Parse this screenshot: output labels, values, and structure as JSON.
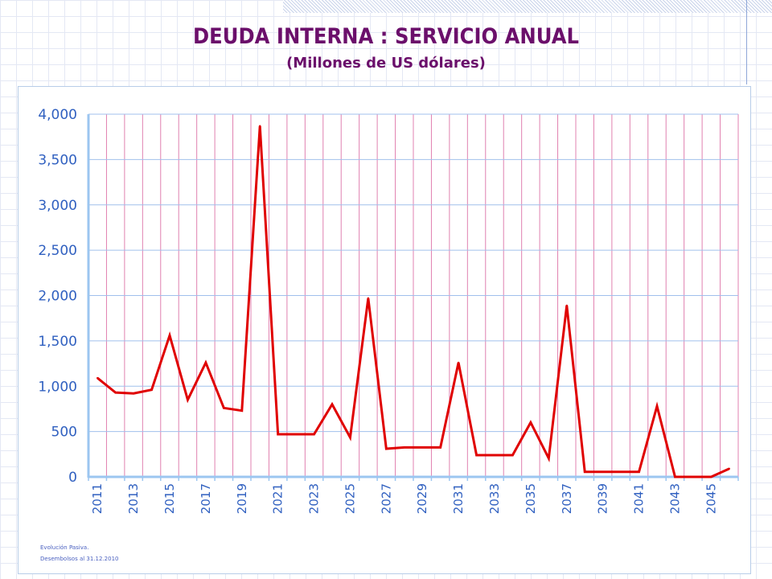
{
  "title": "DEUDA INTERNA : SERVICIO ANUAL",
  "subtitle": "(Millones de US dólares)",
  "notes": [
    "Evolución Pasiva.",
    "Desembolsos al 31.12.2010"
  ],
  "colors": {
    "line": "#e00000",
    "axis": "#9cc6f0",
    "vgrid": "#e080b0",
    "hgrid": "#a0c0ec",
    "labels": "#3060c0"
  },
  "chart_data": {
    "type": "line",
    "title": "DEUDA INTERNA : SERVICIO ANUAL",
    "xlabel": "",
    "ylabel": "Millones de US dólares",
    "ylim": [
      0,
      4000
    ],
    "yticks": [
      0,
      500,
      1000,
      1500,
      2000,
      2500,
      3000,
      3500,
      4000
    ],
    "ytick_labels": [
      "0",
      "500",
      "1,000",
      "1,500",
      "2,000",
      "2,500",
      "3,000",
      "3,500",
      "4,000"
    ],
    "categories": [
      2011,
      2012,
      2013,
      2014,
      2015,
      2016,
      2017,
      2018,
      2019,
      2020,
      2021,
      2022,
      2023,
      2024,
      2025,
      2026,
      2027,
      2028,
      2029,
      2030,
      2031,
      2032,
      2033,
      2034,
      2035,
      2036,
      2037,
      2038,
      2039,
      2040,
      2041,
      2042,
      2043,
      2044,
      2045,
      2046
    ],
    "xtick_labels": [
      "2011",
      "2013",
      "2015",
      "2017",
      "2019",
      "2021",
      "2023",
      "2025",
      "2027",
      "2029",
      "2031",
      "2033",
      "2035",
      "2037",
      "2039",
      "2041",
      "2043",
      "2045"
    ],
    "grid": true,
    "series": [
      {
        "name": "Servicio anual",
        "values": [
          1090,
          930,
          920,
          960,
          1560,
          850,
          1260,
          760,
          730,
          3870,
          470,
          470,
          470,
          800,
          435,
          1970,
          310,
          325,
          325,
          325,
          1260,
          240,
          240,
          240,
          600,
          205,
          1890,
          55,
          55,
          55,
          55,
          780,
          0,
          0,
          0,
          90
        ]
      }
    ]
  }
}
